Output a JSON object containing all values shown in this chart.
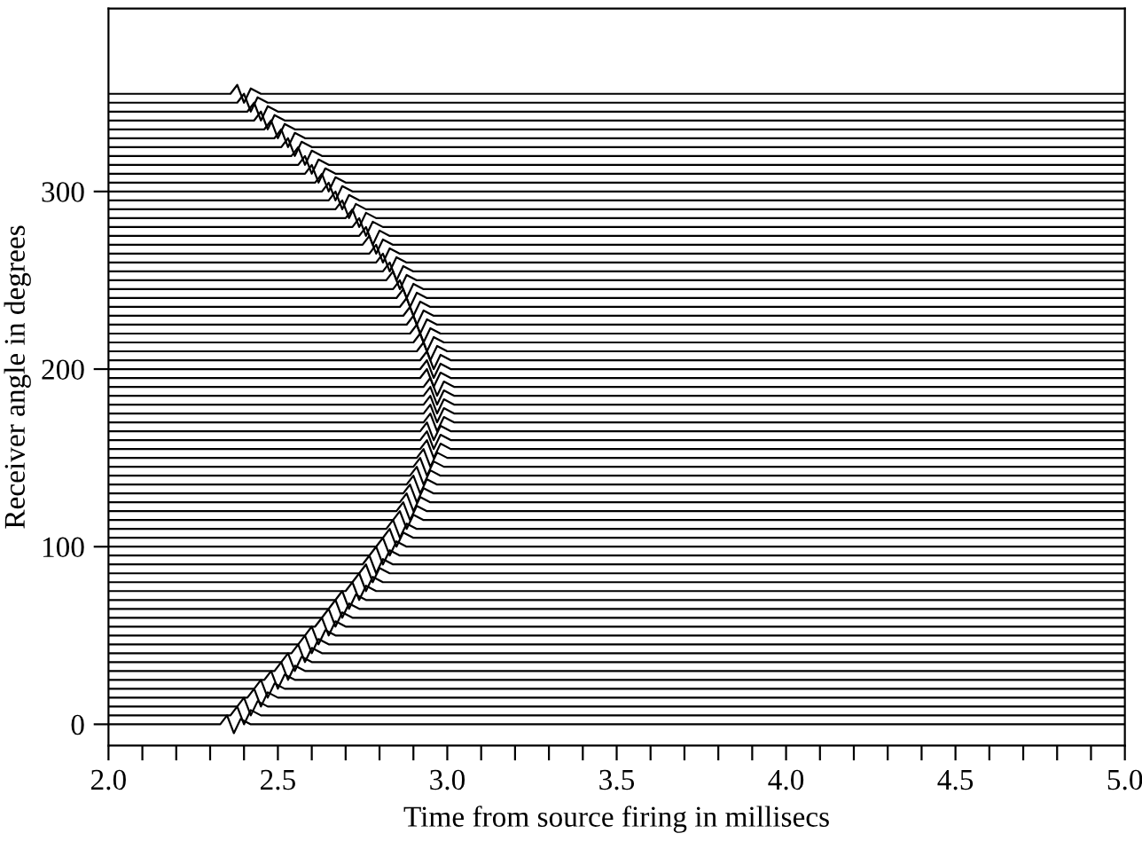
{
  "chart_data": {
    "type": "line",
    "xlabel": "Time from source firing in millisecs",
    "ylabel": "Receiver angle in degrees",
    "color": "#000000",
    "xlim": [
      2.0,
      5.0
    ],
    "ylim": [
      -12,
      403
    ],
    "xticks": [
      {
        "value": 2.0,
        "label": "2.0"
      },
      {
        "value": 2.1,
        "label": null
      },
      {
        "value": 2.2,
        "label": null
      },
      {
        "value": 2.3,
        "label": null
      },
      {
        "value": 2.4,
        "label": null
      },
      {
        "value": 2.5,
        "label": "2.5"
      },
      {
        "value": 2.6,
        "label": null
      },
      {
        "value": 2.7,
        "label": null
      },
      {
        "value": 2.8,
        "label": null
      },
      {
        "value": 2.9,
        "label": null
      },
      {
        "value": 3.0,
        "label": "3.0"
      },
      {
        "value": 3.1,
        "label": null
      },
      {
        "value": 3.2,
        "label": null
      },
      {
        "value": 3.3,
        "label": null
      },
      {
        "value": 3.4,
        "label": null
      },
      {
        "value": 3.5,
        "label": "3.5"
      },
      {
        "value": 3.6,
        "label": null
      },
      {
        "value": 3.7,
        "label": null
      },
      {
        "value": 3.8,
        "label": null
      },
      {
        "value": 3.9,
        "label": null
      },
      {
        "value": 4.0,
        "label": "4.0"
      },
      {
        "value": 4.1,
        "label": null
      },
      {
        "value": 4.2,
        "label": null
      },
      {
        "value": 4.3,
        "label": null
      },
      {
        "value": 4.4,
        "label": null
      },
      {
        "value": 4.5,
        "label": "4.5"
      },
      {
        "value": 4.6,
        "label": null
      },
      {
        "value": 4.7,
        "label": null
      },
      {
        "value": 4.8,
        "label": null
      },
      {
        "value": 4.9,
        "label": null
      },
      {
        "value": 5.0,
        "label": "5.0"
      }
    ],
    "yticks": [
      0,
      100,
      200,
      300
    ],
    "grid": false,
    "legend": false,
    "marker": "none",
    "line_style": "solid",
    "series": [
      {
        "x": [
          2.0,
          2.33,
          2.35,
          2.37,
          2.39,
          2.42,
          5.0
        ],
        "values": [
          0,
          0,
          5,
          -5,
          3,
          0,
          0
        ]
      },
      {
        "x": [
          2.0,
          2.36,
          2.38,
          2.4,
          2.42,
          2.45,
          5.0
        ],
        "values": [
          5,
          5,
          10,
          0,
          8,
          5,
          5
        ]
      },
      {
        "x": [
          2.0,
          2.38,
          2.4,
          2.42,
          2.44,
          2.47,
          5.0
        ],
        "values": [
          10,
          10,
          15,
          5,
          13,
          10,
          10
        ]
      },
      {
        "x": [
          2.0,
          2.41,
          2.43,
          2.45,
          2.47,
          2.5,
          5.0
        ],
        "values": [
          15,
          15,
          20,
          10,
          18,
          15,
          15
        ]
      },
      {
        "x": [
          2.0,
          2.43,
          2.45,
          2.47,
          2.49,
          2.52,
          5.0
        ],
        "values": [
          20,
          20,
          25,
          15,
          23,
          20,
          20
        ]
      },
      {
        "x": [
          2.0,
          2.46,
          2.48,
          2.5,
          2.52,
          2.55,
          5.0
        ],
        "values": [
          25,
          25,
          30,
          20,
          28,
          25,
          25
        ]
      },
      {
        "x": [
          2.0,
          2.49,
          2.51,
          2.53,
          2.55,
          2.58,
          5.0
        ],
        "values": [
          30,
          30,
          35,
          25,
          33,
          30,
          30
        ]
      },
      {
        "x": [
          2.0,
          2.51,
          2.53,
          2.55,
          2.57,
          2.6,
          5.0
        ],
        "values": [
          35,
          35,
          40,
          30,
          38,
          35,
          35
        ]
      },
      {
        "x": [
          2.0,
          2.54,
          2.56,
          2.58,
          2.6,
          2.63,
          5.0
        ],
        "values": [
          40,
          40,
          45,
          35,
          43,
          40,
          40
        ]
      },
      {
        "x": [
          2.0,
          2.56,
          2.58,
          2.6,
          2.62,
          2.65,
          5.0
        ],
        "values": [
          45,
          45,
          50,
          40,
          48,
          45,
          45
        ]
      },
      {
        "x": [
          2.0,
          2.58,
          2.6,
          2.62,
          2.64,
          2.67,
          5.0
        ],
        "values": [
          50,
          50,
          55,
          45,
          53,
          50,
          50
        ]
      },
      {
        "x": [
          2.0,
          2.61,
          2.63,
          2.65,
          2.67,
          2.7,
          5.0
        ],
        "values": [
          55,
          55,
          60,
          50,
          58,
          55,
          55
        ]
      },
      {
        "x": [
          2.0,
          2.63,
          2.65,
          2.67,
          2.69,
          2.72,
          5.0
        ],
        "values": [
          60,
          60,
          65,
          55,
          63,
          60,
          60
        ]
      },
      {
        "x": [
          2.0,
          2.65,
          2.67,
          2.69,
          2.71,
          2.74,
          5.0
        ],
        "values": [
          65,
          65,
          70,
          60,
          68,
          65,
          65
        ]
      },
      {
        "x": [
          2.0,
          2.67,
          2.69,
          2.71,
          2.73,
          2.76,
          5.0
        ],
        "values": [
          70,
          70,
          75,
          65,
          73,
          70,
          70
        ]
      },
      {
        "x": [
          2.0,
          2.7,
          2.72,
          2.74,
          2.76,
          2.79,
          5.0
        ],
        "values": [
          75,
          75,
          80,
          70,
          78,
          75,
          75
        ]
      },
      {
        "x": [
          2.0,
          2.72,
          2.74,
          2.76,
          2.78,
          2.81,
          5.0
        ],
        "values": [
          80,
          80,
          85,
          75,
          83,
          80,
          80
        ]
      },
      {
        "x": [
          2.0,
          2.74,
          2.76,
          2.78,
          2.8,
          2.83,
          5.0
        ],
        "values": [
          85,
          85,
          90,
          80,
          88,
          85,
          85
        ]
      },
      {
        "x": [
          2.0,
          2.75,
          2.77,
          2.79,
          2.81,
          2.84,
          5.0
        ],
        "values": [
          90,
          90,
          95,
          85,
          93,
          90,
          90
        ]
      },
      {
        "x": [
          2.0,
          2.77,
          2.79,
          2.81,
          2.83,
          2.86,
          5.0
        ],
        "values": [
          95,
          95,
          100,
          90,
          98,
          95,
          95
        ]
      },
      {
        "x": [
          2.0,
          2.79,
          2.81,
          2.83,
          2.85,
          2.88,
          5.0
        ],
        "values": [
          100,
          100,
          105,
          95,
          103,
          100,
          100
        ]
      },
      {
        "x": [
          2.0,
          2.81,
          2.83,
          2.85,
          2.87,
          2.9,
          5.0
        ],
        "values": [
          105,
          105,
          110,
          100,
          108,
          105,
          105
        ]
      },
      {
        "x": [
          2.0,
          2.82,
          2.84,
          2.86,
          2.88,
          2.91,
          5.0
        ],
        "values": [
          110,
          110,
          115,
          105,
          113,
          110,
          110
        ]
      },
      {
        "x": [
          2.0,
          2.84,
          2.86,
          2.88,
          2.9,
          2.93,
          5.0
        ],
        "values": [
          115,
          115,
          120,
          110,
          118,
          115,
          115
        ]
      },
      {
        "x": [
          2.0,
          2.85,
          2.87,
          2.89,
          2.91,
          2.94,
          5.0
        ],
        "values": [
          120,
          120,
          125,
          115,
          123,
          120,
          120
        ]
      },
      {
        "x": [
          2.0,
          2.86,
          2.88,
          2.9,
          2.92,
          2.95,
          5.0
        ],
        "values": [
          125,
          125,
          130,
          120,
          128,
          125,
          125
        ]
      },
      {
        "x": [
          2.0,
          2.87,
          2.89,
          2.91,
          2.93,
          2.96,
          5.0
        ],
        "values": [
          130,
          130,
          135,
          125,
          133,
          130,
          130
        ]
      },
      {
        "x": [
          2.0,
          2.88,
          2.9,
          2.92,
          2.94,
          2.97,
          5.0
        ],
        "values": [
          135,
          135,
          140,
          130,
          138,
          135,
          135
        ]
      },
      {
        "x": [
          2.0,
          2.89,
          2.91,
          2.93,
          2.95,
          2.98,
          5.0
        ],
        "values": [
          140,
          140,
          145,
          135,
          143,
          140,
          140
        ]
      },
      {
        "x": [
          2.0,
          2.9,
          2.92,
          2.94,
          2.96,
          2.99,
          5.0
        ],
        "values": [
          145,
          145,
          150,
          140,
          148,
          145,
          145
        ]
      },
      {
        "x": [
          2.0,
          2.91,
          2.93,
          2.95,
          2.97,
          3.0,
          5.0
        ],
        "values": [
          150,
          150,
          155,
          145,
          153,
          150,
          150
        ]
      },
      {
        "x": [
          2.0,
          2.92,
          2.94,
          2.96,
          2.98,
          3.01,
          5.0
        ],
        "values": [
          155,
          155,
          160,
          150,
          158,
          155,
          155
        ]
      },
      {
        "x": [
          2.0,
          2.92,
          2.94,
          2.96,
          2.98,
          3.01,
          5.0
        ],
        "values": [
          160,
          160,
          165,
          155,
          163,
          160,
          160
        ]
      },
      {
        "x": [
          2.0,
          2.92,
          2.94,
          2.96,
          2.98,
          3.01,
          5.0
        ],
        "values": [
          165,
          165,
          170,
          160,
          168,
          165,
          165
        ]
      },
      {
        "x": [
          2.0,
          2.93,
          2.95,
          2.97,
          2.99,
          3.02,
          5.0
        ],
        "values": [
          170,
          170,
          175,
          165,
          173,
          170,
          170
        ]
      },
      {
        "x": [
          2.0,
          2.93,
          2.95,
          2.97,
          2.99,
          3.02,
          5.0
        ],
        "values": [
          175,
          175,
          180,
          170,
          178,
          175,
          175
        ]
      },
      {
        "x": [
          2.0,
          2.93,
          2.95,
          2.97,
          2.99,
          3.02,
          5.0
        ],
        "values": [
          180,
          180,
          185,
          175,
          183,
          180,
          180
        ]
      },
      {
        "x": [
          2.0,
          2.93,
          2.95,
          2.97,
          2.99,
          3.02,
          5.0
        ],
        "values": [
          185,
          185,
          190,
          180,
          188,
          185,
          185
        ]
      },
      {
        "x": [
          2.0,
          2.93,
          2.95,
          2.97,
          2.99,
          3.02,
          5.0
        ],
        "values": [
          190,
          190,
          195,
          185,
          193,
          190,
          190
        ]
      },
      {
        "x": [
          2.0,
          2.92,
          2.94,
          2.96,
          2.98,
          3.01,
          5.0
        ],
        "values": [
          195,
          195,
          200,
          190,
          198,
          195,
          195
        ]
      },
      {
        "x": [
          2.0,
          2.92,
          2.94,
          2.96,
          2.98,
          3.01,
          5.0
        ],
        "values": [
          200,
          200,
          205,
          195,
          203,
          200,
          200
        ]
      },
      {
        "x": [
          2.0,
          2.92,
          2.94,
          2.96,
          2.98,
          3.01,
          5.0
        ],
        "values": [
          205,
          205,
          210,
          200,
          208,
          205,
          205
        ]
      },
      {
        "x": [
          2.0,
          2.91,
          2.93,
          2.95,
          2.97,
          3.0,
          5.0
        ],
        "values": [
          210,
          210,
          215,
          205,
          213,
          210,
          210
        ]
      },
      {
        "x": [
          2.0,
          2.9,
          2.92,
          2.94,
          2.96,
          2.99,
          5.0
        ],
        "values": [
          215,
          215,
          220,
          210,
          218,
          215,
          215
        ]
      },
      {
        "x": [
          2.0,
          2.89,
          2.91,
          2.93,
          2.95,
          2.98,
          5.0
        ],
        "values": [
          220,
          220,
          225,
          215,
          223,
          220,
          220
        ]
      },
      {
        "x": [
          2.0,
          2.88,
          2.9,
          2.92,
          2.94,
          2.97,
          5.0
        ],
        "values": [
          225,
          225,
          230,
          220,
          228,
          225,
          225
        ]
      },
      {
        "x": [
          2.0,
          2.87,
          2.89,
          2.91,
          2.93,
          2.96,
          5.0
        ],
        "values": [
          230,
          230,
          235,
          225,
          233,
          230,
          230
        ]
      },
      {
        "x": [
          2.0,
          2.86,
          2.88,
          2.9,
          2.92,
          2.95,
          5.0
        ],
        "values": [
          235,
          235,
          240,
          230,
          238,
          235,
          235
        ]
      },
      {
        "x": [
          2.0,
          2.85,
          2.87,
          2.89,
          2.91,
          2.94,
          5.0
        ],
        "values": [
          240,
          240,
          245,
          235,
          243,
          240,
          240
        ]
      },
      {
        "x": [
          2.0,
          2.84,
          2.86,
          2.88,
          2.9,
          2.93,
          5.0
        ],
        "values": [
          245,
          245,
          250,
          240,
          248,
          245,
          245
        ]
      },
      {
        "x": [
          2.0,
          2.82,
          2.84,
          2.86,
          2.88,
          2.91,
          5.0
        ],
        "values": [
          250,
          250,
          255,
          245,
          253,
          250,
          250
        ]
      },
      {
        "x": [
          2.0,
          2.81,
          2.83,
          2.85,
          2.87,
          2.9,
          5.0
        ],
        "values": [
          255,
          255,
          260,
          250,
          258,
          255,
          255
        ]
      },
      {
        "x": [
          2.0,
          2.79,
          2.81,
          2.83,
          2.85,
          2.88,
          5.0
        ],
        "values": [
          260,
          260,
          265,
          255,
          263,
          260,
          260
        ]
      },
      {
        "x": [
          2.0,
          2.77,
          2.79,
          2.81,
          2.83,
          2.86,
          5.0
        ],
        "values": [
          265,
          265,
          270,
          260,
          268,
          265,
          265
        ]
      },
      {
        "x": [
          2.0,
          2.75,
          2.77,
          2.79,
          2.81,
          2.84,
          5.0
        ],
        "values": [
          270,
          270,
          275,
          265,
          273,
          270,
          270
        ]
      },
      {
        "x": [
          2.0,
          2.74,
          2.76,
          2.78,
          2.8,
          2.83,
          5.0
        ],
        "values": [
          275,
          275,
          280,
          270,
          278,
          275,
          275
        ]
      },
      {
        "x": [
          2.0,
          2.72,
          2.74,
          2.76,
          2.78,
          2.81,
          5.0
        ],
        "values": [
          280,
          280,
          285,
          275,
          283,
          280,
          280
        ]
      },
      {
        "x": [
          2.0,
          2.7,
          2.72,
          2.74,
          2.76,
          2.79,
          5.0
        ],
        "values": [
          285,
          285,
          290,
          280,
          288,
          285,
          285
        ]
      },
      {
        "x": [
          2.0,
          2.67,
          2.69,
          2.71,
          2.73,
          2.76,
          5.0
        ],
        "values": [
          290,
          290,
          295,
          285,
          293,
          290,
          290
        ]
      },
      {
        "x": [
          2.0,
          2.65,
          2.67,
          2.69,
          2.71,
          2.74,
          5.0
        ],
        "values": [
          295,
          295,
          300,
          290,
          298,
          295,
          295
        ]
      },
      {
        "x": [
          2.0,
          2.63,
          2.65,
          2.67,
          2.69,
          2.72,
          5.0
        ],
        "values": [
          300,
          300,
          305,
          295,
          303,
          300,
          300
        ]
      },
      {
        "x": [
          2.0,
          2.61,
          2.63,
          2.65,
          2.67,
          2.7,
          5.0
        ],
        "values": [
          305,
          305,
          310,
          300,
          308,
          305,
          305
        ]
      },
      {
        "x": [
          2.0,
          2.58,
          2.6,
          2.62,
          2.64,
          2.67,
          5.0
        ],
        "values": [
          310,
          310,
          315,
          305,
          313,
          310,
          310
        ]
      },
      {
        "x": [
          2.0,
          2.56,
          2.58,
          2.6,
          2.62,
          2.65,
          5.0
        ],
        "values": [
          315,
          315,
          320,
          310,
          318,
          315,
          315
        ]
      },
      {
        "x": [
          2.0,
          2.54,
          2.56,
          2.58,
          2.6,
          2.63,
          5.0
        ],
        "values": [
          320,
          320,
          325,
          315,
          323,
          320,
          320
        ]
      },
      {
        "x": [
          2.0,
          2.51,
          2.53,
          2.55,
          2.57,
          2.6,
          5.0
        ],
        "values": [
          325,
          325,
          330,
          320,
          328,
          325,
          325
        ]
      },
      {
        "x": [
          2.0,
          2.49,
          2.51,
          2.53,
          2.55,
          2.58,
          5.0
        ],
        "values": [
          330,
          330,
          335,
          325,
          333,
          330,
          330
        ]
      },
      {
        "x": [
          2.0,
          2.46,
          2.48,
          2.5,
          2.52,
          2.55,
          5.0
        ],
        "values": [
          335,
          335,
          340,
          330,
          338,
          335,
          335
        ]
      },
      {
        "x": [
          2.0,
          2.43,
          2.45,
          2.47,
          2.49,
          2.52,
          5.0
        ],
        "values": [
          340,
          340,
          345,
          335,
          343,
          340,
          340
        ]
      },
      {
        "x": [
          2.0,
          2.41,
          2.43,
          2.45,
          2.47,
          2.5,
          5.0
        ],
        "values": [
          345,
          345,
          350,
          340,
          348,
          345,
          345
        ]
      },
      {
        "x": [
          2.0,
          2.38,
          2.4,
          2.42,
          2.44,
          2.47,
          5.0
        ],
        "values": [
          350,
          350,
          355,
          345,
          353,
          350,
          350
        ]
      },
      {
        "x": [
          2.0,
          2.36,
          2.38,
          2.4,
          2.42,
          2.45,
          5.0
        ],
        "values": [
          355,
          355,
          360,
          350,
          358,
          355,
          355
        ]
      }
    ]
  }
}
